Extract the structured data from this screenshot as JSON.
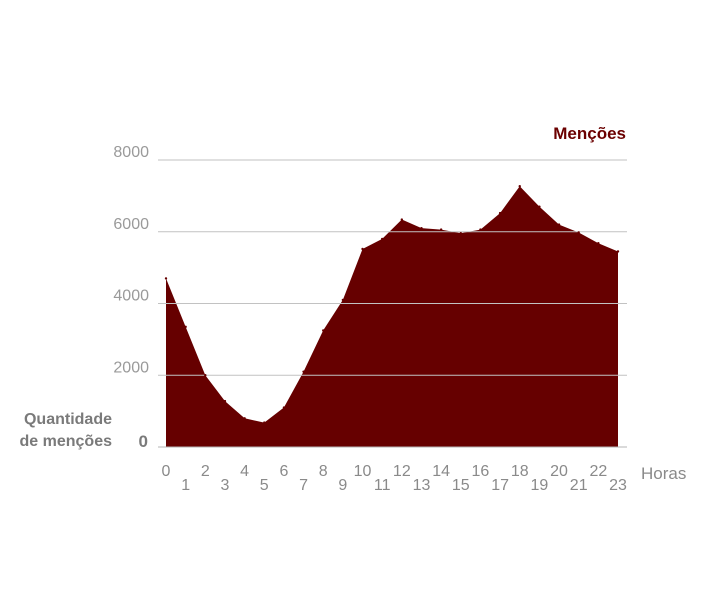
{
  "chart_data": {
    "type": "area",
    "series": [
      {
        "name": "Menções",
        "color": "#660000",
        "values": [
          4700,
          3350,
          2000,
          1280,
          800,
          680,
          1100,
          2100,
          3250,
          4100,
          5520,
          5800,
          6340,
          6100,
          6060,
          5960,
          6060,
          6520,
          7270,
          6700,
          6200,
          5980,
          5680,
          5450
        ]
      }
    ],
    "x": [
      "0",
      "1",
      "2",
      "3",
      "4",
      "5",
      "6",
      "7",
      "8",
      "9",
      "10",
      "11",
      "12",
      "13",
      "14",
      "15",
      "16",
      "17",
      "18",
      "19",
      "20",
      "21",
      "22",
      "23"
    ],
    "y_ticks": [
      "8000",
      "6000",
      "4000",
      "2000",
      "0"
    ],
    "ylim": [
      0,
      8000
    ],
    "xlabel": "Horas",
    "ylabel": "Quantidade de menções",
    "grid": true,
    "legend": "top-right"
  }
}
